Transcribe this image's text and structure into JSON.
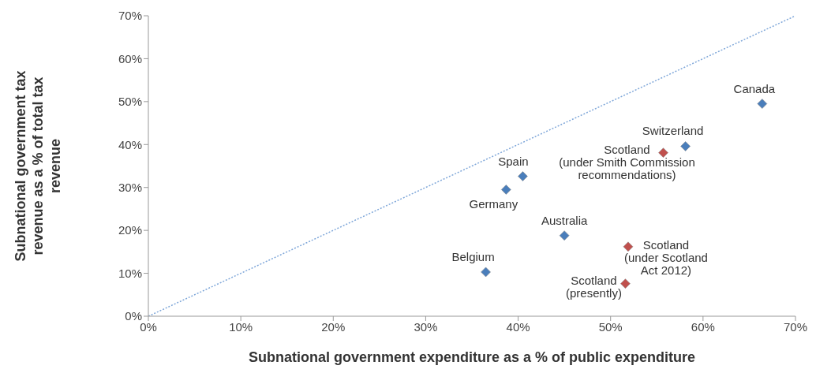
{
  "chart_data": {
    "type": "scatter",
    "xlabel": "Subnational government expenditure as a % of public expenditure",
    "ylabel": "Subnational government tax revenue as a % of total tax revenue",
    "xlim": [
      0,
      70
    ],
    "ylim": [
      0,
      70
    ],
    "xticks": [
      {
        "value": 0,
        "label": "0%"
      },
      {
        "value": 10,
        "label": "10%"
      },
      {
        "value": 20,
        "label": "20%"
      },
      {
        "value": 30,
        "label": "30%"
      },
      {
        "value": 40,
        "label": "40%"
      },
      {
        "value": 50,
        "label": "50%"
      },
      {
        "value": 60,
        "label": "60%"
      },
      {
        "value": 70,
        "label": "70%"
      }
    ],
    "yticks": [
      {
        "value": 0,
        "label": "0%"
      },
      {
        "value": 10,
        "label": "10%"
      },
      {
        "value": 20,
        "label": "20%"
      },
      {
        "value": 30,
        "label": "30%"
      },
      {
        "value": 40,
        "label": "40%"
      },
      {
        "value": 50,
        "label": "50%"
      },
      {
        "value": 60,
        "label": "60%"
      },
      {
        "value": 70,
        "label": "70%"
      }
    ],
    "marker": "diamond",
    "grid": false,
    "series": [
      {
        "type": "line",
        "x": [
          0,
          70
        ],
        "values": [
          0,
          70
        ],
        "color": "#7fa7d9",
        "line_style": "dotted",
        "marker": "none"
      },
      {
        "x": [
          66.4,
          58.1,
          40.5,
          38.7,
          45.0,
          36.5
        ],
        "values": [
          49.5,
          39.6,
          32.6,
          29.5,
          18.8,
          10.3
        ],
        "color": "#4a7ebb"
      },
      {
        "x": [
          55.7,
          51.9,
          51.6
        ],
        "values": [
          38.1,
          16.2,
          7.6
        ],
        "color": "#c0504d"
      }
    ],
    "annotations": [
      {
        "text": "Canada",
        "x": 66.4,
        "y": 49.5
      },
      {
        "text": "Switzerland",
        "x": 58.1,
        "y": 39.6
      },
      {
        "text": "Spain",
        "x": 40.5,
        "y": 32.6
      },
      {
        "text": "Germany",
        "x": 38.7,
        "y": 29.5
      },
      {
        "text": "Australia",
        "x": 45.0,
        "y": 18.8
      },
      {
        "text": "Belgium",
        "x": 36.5,
        "y": 10.3
      },
      {
        "text": "Scotland\n(under Smith Commission\nrecommendations)",
        "x": 55.7,
        "y": 38.1
      },
      {
        "text": "Scotland\n(under Scotland\nAct 2012)",
        "x": 51.9,
        "y": 16.2
      },
      {
        "text": "Scotland\n(presently)",
        "x": 51.6,
        "y": 7.6
      }
    ]
  }
}
